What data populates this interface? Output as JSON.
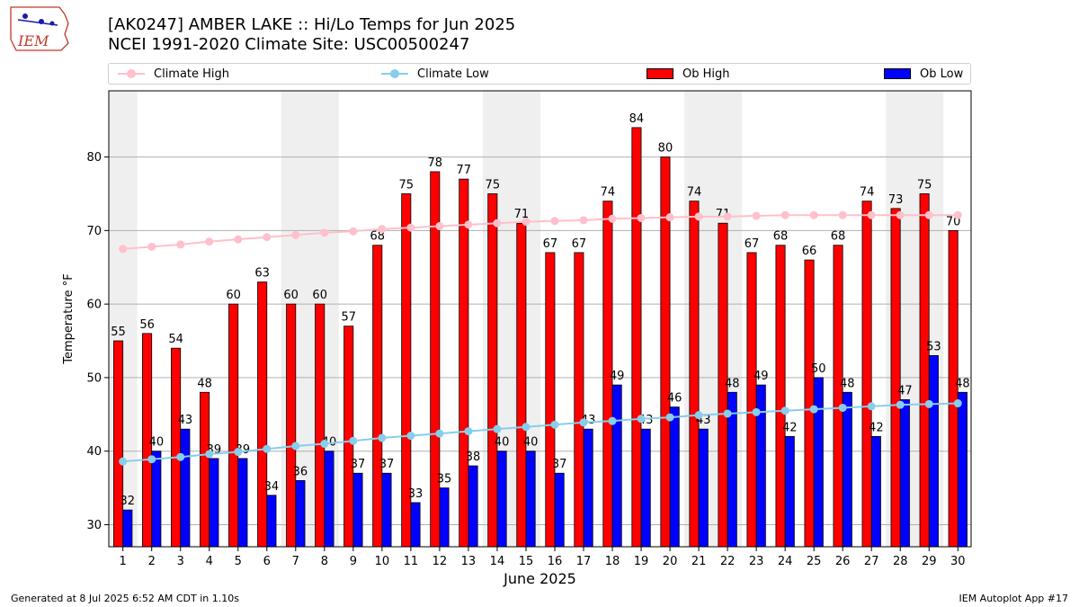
{
  "header": {
    "title_line1": "[AK0247] AMBER LAKE :: Hi/Lo Temps for Jun 2025",
    "title_line2": "NCEI 1991-2020 Climate Site: USC00500247"
  },
  "logo": {
    "text": "IEM",
    "icon": "iowa-state-outline-logo"
  },
  "footer": {
    "left": "Generated at 8 Jul 2025 6:52 AM CDT in 1.10s",
    "right": "IEM Autoplot App #17"
  },
  "colors": {
    "ob_high": "#ff0000",
    "ob_low": "#0000ff",
    "climate_high": "#ffc0cb",
    "climate_low": "#87ceeb",
    "weekend_shade": "#efefef",
    "grid": "#b0b0b0"
  },
  "legend": {
    "climate_high": "Climate High",
    "climate_low": "Climate Low",
    "ob_high": "Ob High",
    "ob_low": "Ob Low"
  },
  "chart_data": {
    "type": "bar",
    "xlabel": "June 2025",
    "ylabel": "Temperature °F",
    "ylim": [
      27,
      89
    ],
    "yticks": [
      30,
      40,
      50,
      60,
      70,
      80
    ],
    "grid": "horizontal",
    "legend_position": "top",
    "shaded_days": [
      1,
      7,
      8,
      14,
      15,
      21,
      22,
      28,
      29
    ],
    "categories": [
      "1",
      "2",
      "3",
      "4",
      "5",
      "6",
      "7",
      "8",
      "9",
      "10",
      "11",
      "12",
      "13",
      "14",
      "15",
      "16",
      "17",
      "18",
      "19",
      "20",
      "21",
      "22",
      "23",
      "24",
      "25",
      "26",
      "27",
      "28",
      "29",
      "30"
    ],
    "series": [
      {
        "name": "Ob High",
        "type": "bar",
        "values": [
          55,
          56,
          54,
          48,
          60,
          63,
          60,
          60,
          57,
          68,
          75,
          78,
          77,
          75,
          71,
          67,
          67,
          74,
          84,
          80,
          74,
          71,
          67,
          68,
          66,
          68,
          74,
          73,
          75,
          70
        ]
      },
      {
        "name": "Ob Low",
        "type": "bar",
        "values": [
          32,
          40,
          43,
          39,
          39,
          34,
          36,
          40,
          37,
          37,
          33,
          35,
          38,
          40,
          40,
          37,
          43,
          49,
          43,
          46,
          43,
          48,
          49,
          42,
          50,
          48,
          42,
          47,
          53,
          48
        ]
      },
      {
        "name": "Climate High",
        "type": "line",
        "values": [
          67.5,
          67.8,
          68.1,
          68.5,
          68.8,
          69.1,
          69.4,
          69.7,
          69.9,
          70.2,
          70.4,
          70.6,
          70.8,
          71.0,
          71.2,
          71.3,
          71.4,
          71.6,
          71.7,
          71.8,
          71.9,
          71.9,
          72.0,
          72.1,
          72.1,
          72.1,
          72.1,
          72.1,
          72.1,
          72.1
        ]
      },
      {
        "name": "Climate Low",
        "type": "line",
        "values": [
          38.6,
          38.9,
          39.2,
          39.6,
          39.9,
          40.3,
          40.7,
          41.0,
          41.4,
          41.8,
          42.1,
          42.4,
          42.7,
          43.0,
          43.3,
          43.6,
          43.9,
          44.1,
          44.4,
          44.6,
          44.9,
          45.1,
          45.3,
          45.5,
          45.7,
          45.9,
          46.1,
          46.3,
          46.4,
          46.5
        ]
      }
    ]
  }
}
